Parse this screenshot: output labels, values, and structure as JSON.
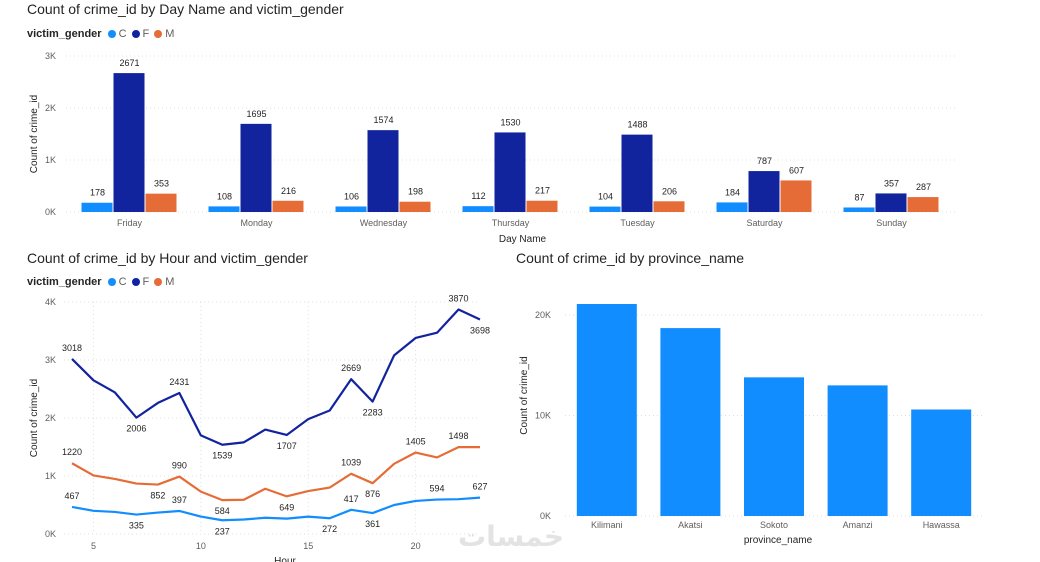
{
  "colors": {
    "C": "#118dff",
    "F": "#12239e",
    "M": "#e66c37",
    "grid": "#e1dfdd",
    "axis": "#605e5c",
    "label": "#252423"
  },
  "watermark": "خمسات",
  "chart_data": [
    {
      "type": "bar",
      "title": "Count of crime_id by Day Name and victim_gender",
      "legend_title": "victim_gender",
      "legend": [
        "C",
        "F",
        "M"
      ],
      "xlabel": "Day Name",
      "ylabel": "Count of crime_id",
      "ylim": [
        0,
        3000
      ],
      "yticks": [
        0,
        1000,
        2000,
        3000
      ],
      "ytick_labels": [
        "0K",
        "1K",
        "2K",
        "3K"
      ],
      "categories": [
        "Friday",
        "Monday",
        "Wednesday",
        "Thursday",
        "Tuesday",
        "Saturday",
        "Sunday"
      ],
      "series": [
        {
          "name": "C",
          "values": [
            178,
            108,
            106,
            112,
            104,
            184,
            87
          ]
        },
        {
          "name": "F",
          "values": [
            2671,
            1695,
            1574,
            1530,
            1488,
            787,
            357
          ]
        },
        {
          "name": "M",
          "values": [
            353,
            216,
            198,
            217,
            206,
            607,
            287
          ]
        }
      ]
    },
    {
      "type": "line",
      "title": "Count of crime_id by Hour and victim_gender",
      "legend_title": "victim_gender",
      "legend": [
        "C",
        "F",
        "M"
      ],
      "xlabel": "Hour",
      "ylabel": "Count of crime_id",
      "xlim": [
        4,
        23
      ],
      "xticks": [
        5,
        10,
        15,
        20
      ],
      "ylim": [
        0,
        4000
      ],
      "yticks": [
        0,
        1000,
        2000,
        3000,
        4000
      ],
      "ytick_labels": [
        "0K",
        "1K",
        "2K",
        "3K",
        "4K"
      ],
      "x": [
        4,
        5,
        6,
        7,
        8,
        9,
        10,
        11,
        12,
        13,
        14,
        15,
        16,
        17,
        18,
        19,
        20,
        21,
        22,
        23
      ],
      "series": [
        {
          "name": "F",
          "values": [
            3018,
            2650,
            2440,
            2006,
            2260,
            2431,
            1700,
            1539,
            1580,
            1800,
            1707,
            1980,
            2130,
            2669,
            2283,
            3080,
            3380,
            3470,
            3870,
            3698
          ],
          "labels": {
            "4": "3018",
            "7": "2006",
            "9": "2431",
            "11": "1539",
            "14": "1707",
            "17": "2669",
            "18": "2283",
            "22": "3870",
            "23": "3698"
          }
        },
        {
          "name": "M",
          "values": [
            1220,
            1010,
            950,
            870,
            852,
            990,
            730,
            584,
            590,
            780,
            649,
            740,
            800,
            1039,
            876,
            1210,
            1405,
            1320,
            1498,
            1498
          ],
          "labels": {
            "4": "1220",
            "8": "852",
            "9": "990",
            "11": "584",
            "14": "649",
            "17": "1039",
            "18": "876",
            "20": "1405",
            "22": "1498"
          }
        },
        {
          "name": "C",
          "values": [
            467,
            400,
            380,
            335,
            370,
            397,
            300,
            237,
            250,
            280,
            265,
            300,
            272,
            417,
            361,
            500,
            570,
            594,
            600,
            627
          ],
          "labels": {
            "4": "467",
            "7": "335",
            "9": "397",
            "11": "237",
            "16": "272",
            "17": "417",
            "18": "361",
            "21": "594",
            "23": "627"
          }
        }
      ]
    },
    {
      "type": "bar",
      "title": "Count of crime_id by province_name",
      "xlabel": "province_name",
      "ylabel": "Count of crime_id",
      "ylim": [
        0,
        21000
      ],
      "yticks": [
        0,
        10000,
        20000
      ],
      "ytick_labels": [
        "0K",
        "10K",
        "20K"
      ],
      "categories": [
        "Kilimani",
        "Akatsi",
        "Sokoto",
        "Amanzi",
        "Hawassa"
      ],
      "values": [
        21100,
        18700,
        13800,
        13000,
        10600
      ]
    }
  ]
}
